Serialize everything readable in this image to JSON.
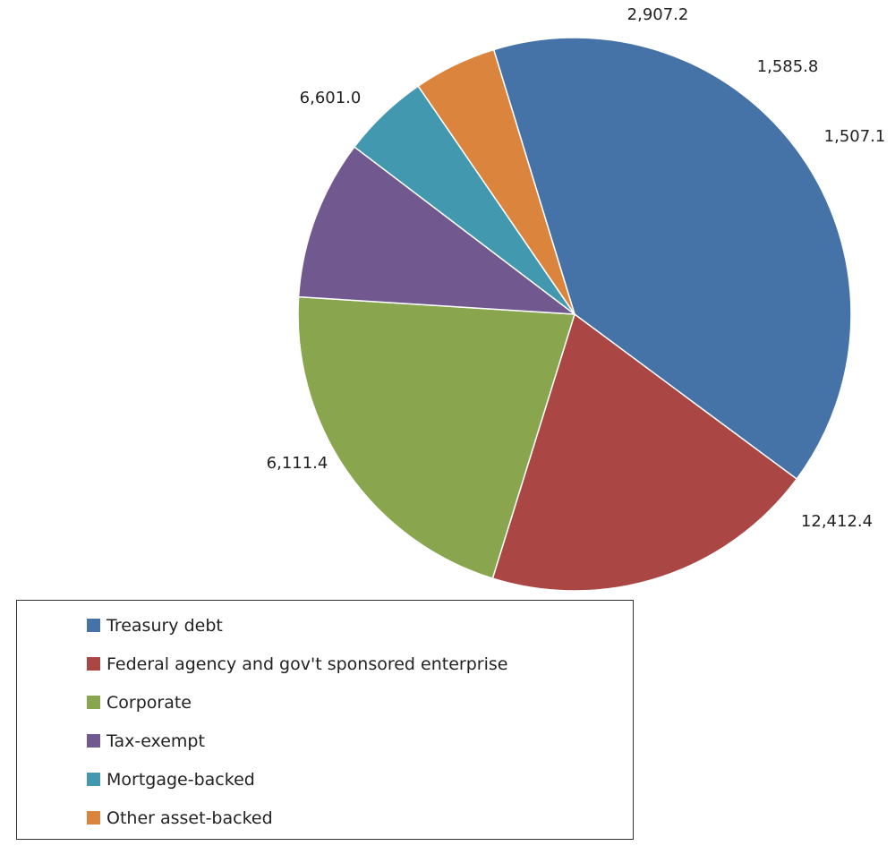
{
  "chart_data": {
    "type": "pie",
    "title": "",
    "start_angle_deg": -17,
    "direction": "clockwise",
    "legend_position": "bottom-left",
    "slices": [
      {
        "name": "Treasury debt",
        "value": 12412.4,
        "label": "12,412.4",
        "color": "#4572a7"
      },
      {
        "name": "Federal agency and gov't sponsored enterprise",
        "value": 6111.4,
        "label": "6,111.4",
        "color": "#aa4643"
      },
      {
        "name": "Corporate",
        "value": 6601.0,
        "label": "6,601.0",
        "color": "#89a54e"
      },
      {
        "name": "Tax-exempt",
        "value": 2907.2,
        "label": "2,907.2",
        "color": "#71588f"
      },
      {
        "name": "Mortgage-backed",
        "value": 1585.8,
        "label": "1,585.8",
        "color": "#4198af"
      },
      {
        "name": "Other asset-backed",
        "value": 1507.1,
        "label": "1,507.1",
        "color": "#db843d"
      }
    ]
  }
}
